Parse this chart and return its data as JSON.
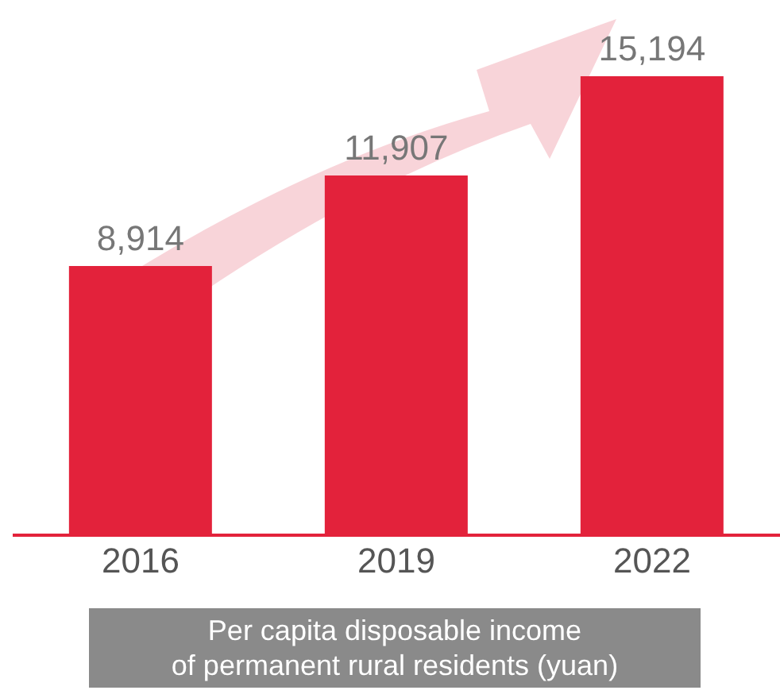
{
  "chart_data": {
    "type": "bar",
    "categories": [
      "2016",
      "2019",
      "2022"
    ],
    "values": [
      8914,
      11907,
      15194
    ],
    "value_labels": [
      "8,914",
      "11,907",
      "15,194"
    ],
    "color": "#e3223b",
    "xlabel": "Per capita disposable income\nof permanent rural residents (yuan)"
  }
}
